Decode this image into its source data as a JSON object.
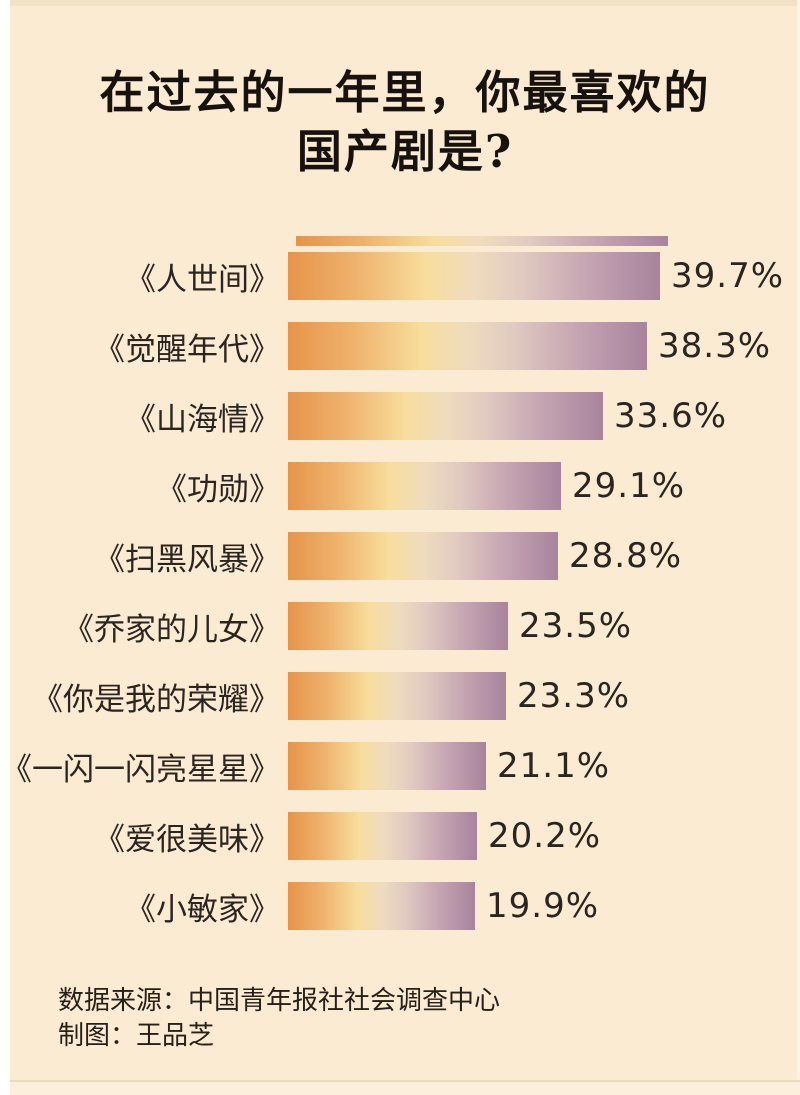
{
  "page": {
    "title_line1": "在过去的一年里，你最喜欢的",
    "title_line2": "国产剧是?",
    "source_line": "数据来源：中国青年报社社会调查中心",
    "credit_line": "制图：王品芝"
  },
  "colors": {
    "background": "#FCEBD3",
    "top_band": "#F1E1C7",
    "left_margin": "#FFFFFF",
    "text": "#2B2520",
    "bar_gradient_start": "#E6944B",
    "bar_gradient_mid": "#F8DD9C",
    "bar_gradient_end": "#A8849D"
  },
  "chart_data": {
    "type": "bar",
    "orientation": "horizontal",
    "title": "在过去的一年里，你最喜欢的国产剧是?",
    "categories": [
      "《人世间》",
      "《觉醒年代》",
      "《山海情》",
      "《功勋》",
      "《扫黑风暴》",
      "《乔家的儿女》",
      "《你是我的荣耀》",
      "《一闪一闪亮星星》",
      "《爱很美味》",
      "《小敏家》"
    ],
    "values": [
      39.7,
      38.3,
      33.6,
      29.1,
      28.8,
      23.5,
      23.3,
      21.1,
      20.2,
      19.9
    ],
    "value_labels": [
      "39.7%",
      "38.3%",
      "33.6%",
      "29.1%",
      "28.8%",
      "23.5%",
      "23.3%",
      "21.1%",
      "20.2%",
      "19.9%"
    ],
    "xlim": [
      0,
      40
    ],
    "grid": false,
    "legend": false,
    "value_label_position": "right-of-bar",
    "source": "数据来源：中国青年报社社会调查中心",
    "credit": "制图：王品芝"
  }
}
